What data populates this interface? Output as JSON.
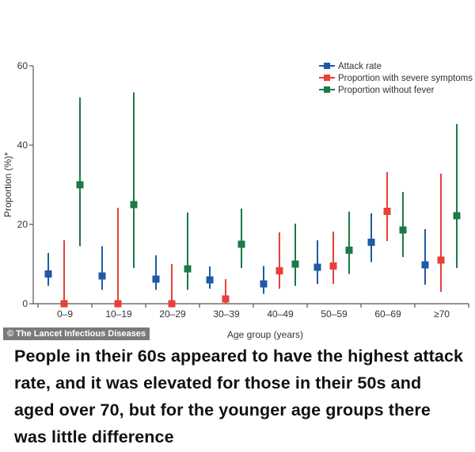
{
  "credit": "© The Lancet Infectious Diseases",
  "caption": "People in their 60s appeared to have the highest attack rate, and it was elevated for those in their 50s and aged over 70, but for the younger age groups there was little difference",
  "chart_data": {
    "type": "scatter",
    "xlabel": "Age group (years)",
    "ylabel": "Proportion (%)*",
    "ylim": [
      0,
      60
    ],
    "yticks": [
      0,
      20,
      40,
      60
    ],
    "grid": false,
    "legend_position": "top-right",
    "categories": [
      "0–9",
      "10–19",
      "20–29",
      "30–39",
      "40–49",
      "50–59",
      "60–69",
      "≥70"
    ],
    "series": [
      {
        "name": "Attack rate",
        "color": "#1f5aa6",
        "values": [
          7.5,
          7,
          6.2,
          6,
          5,
          9.2,
          15.5,
          9.8
        ],
        "lower": [
          4.5,
          3.5,
          3.5,
          3.8,
          2.5,
          5,
          10.5,
          4.8
        ],
        "upper": [
          12.8,
          14.5,
          12.2,
          9.4,
          9.5,
          16,
          22.8,
          18.8
        ]
      },
      {
        "name": "Proportion with severe symptoms",
        "color": "#e8403a",
        "values": [
          0,
          0,
          0,
          1.2,
          8.3,
          9.5,
          23.3,
          11
        ],
        "lower": [
          0,
          0,
          0,
          0,
          3.8,
          5,
          15.8,
          3
        ],
        "upper": [
          16,
          24.2,
          10,
          6.2,
          18,
          18.2,
          33.2,
          32.8
        ]
      },
      {
        "name": "Proportion without fever",
        "color": "#1b7a45",
        "values": [
          30,
          25,
          8.8,
          15,
          10,
          13.5,
          18.6,
          22.2
        ],
        "lower": [
          14.5,
          9,
          3.5,
          9,
          4.5,
          7.5,
          11.8,
          9
        ],
        "upper": [
          52,
          53.3,
          23,
          24,
          20.2,
          23.2,
          28.2,
          45.3
        ]
      }
    ]
  }
}
